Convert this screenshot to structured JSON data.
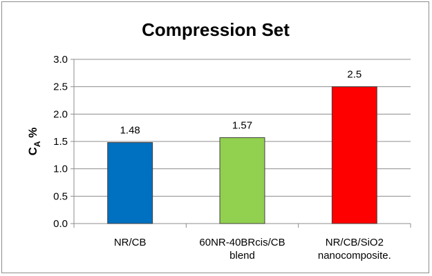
{
  "chart_data": {
    "type": "bar",
    "title": "Compression Set",
    "xlabel": "",
    "ylabel": "C_A %",
    "ylabel_main": "C",
    "ylabel_sub": "A",
    "ylabel_suffix": " %",
    "categories": [
      [
        "NR/CB"
      ],
      [
        "60NR-40BRcis/CB",
        "blend"
      ],
      [
        "NR/CB/SiO2",
        "nanocomposite."
      ]
    ],
    "values": [
      1.48,
      1.57,
      2.5
    ],
    "data_labels": [
      "1.48",
      "1.57",
      "2.5"
    ],
    "colors": [
      "#0070c0",
      "#92d050",
      "#ff0000"
    ],
    "ylim": [
      0,
      3.0
    ],
    "yticks": [
      "0.0",
      "0.5",
      "1.0",
      "1.5",
      "2.0",
      "2.5",
      "3.0"
    ],
    "grid": true,
    "legend": "none"
  }
}
